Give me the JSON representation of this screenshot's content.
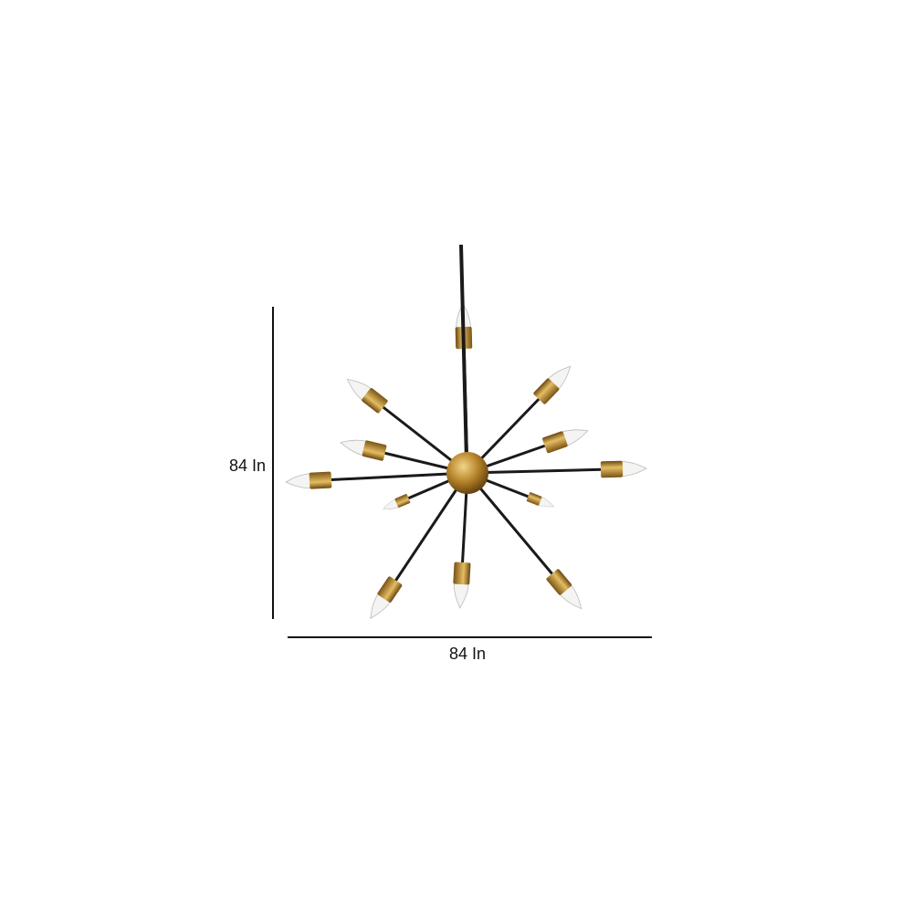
{
  "dimensions": {
    "height_label": "84 In",
    "width_label": "84 In"
  },
  "colors": {
    "brass": "#b8862b",
    "arm": "#1a1a1a",
    "bulb": "#f4f4f2"
  }
}
